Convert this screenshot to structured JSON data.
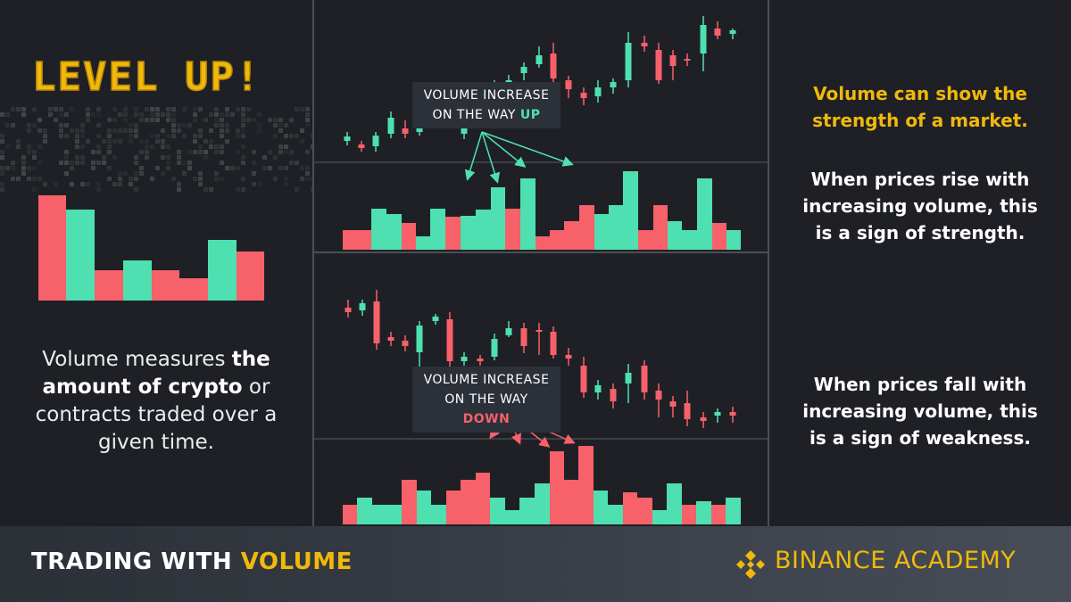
{
  "banner": {
    "title": "LEVEL UP!"
  },
  "left": {
    "desc_pre": "Volume measures ",
    "desc_bold": "the amount of crypto",
    "desc_post": " or contracts traded over a given time."
  },
  "middle": {
    "upper_callout": {
      "line1": "VOLUME INCREASE",
      "line2_pre": "ON THE WAY ",
      "line2_highlight": "UP"
    },
    "lower_callout": {
      "line1": "VOLUME INCREASE",
      "line2_pre": "ON THE WAY ",
      "line2_highlight": "DOWN"
    }
  },
  "right": {
    "headline": "Volume can show the strength of a market.",
    "rise": "When prices rise with increasing volume, this is a sign of strength.",
    "fall": "When prices fall with increasing volume, this is a sign of weakness."
  },
  "footer": {
    "title_pre": "TRADING WITH ",
    "title_highlight": "VOLUME",
    "brand": "BINANCE ACADEMY"
  },
  "colors": {
    "green": "#4ee0b0",
    "red": "#f6616a",
    "gold": "#f0b90b",
    "background": "#1e2026"
  },
  "icons": {
    "brand_logo": "binance-diamond-logo"
  }
}
